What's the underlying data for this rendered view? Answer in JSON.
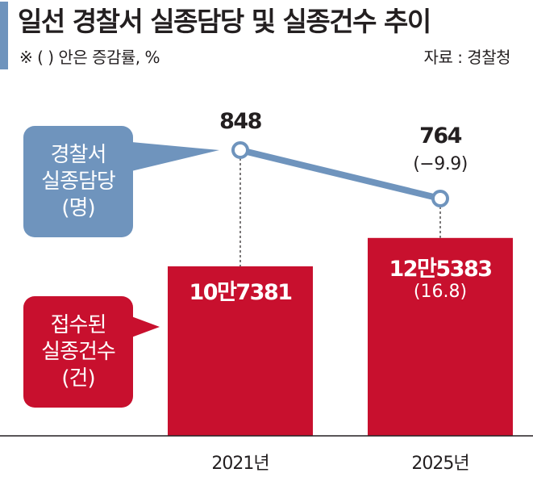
{
  "header": {
    "title": "일선 경찰서 실종담당 및 실종건수 추이",
    "note": "※ (  ) 안은 증감률, %",
    "source": "자료 : 경찰청"
  },
  "legend": {
    "officers_lines": [
      "경찰서",
      "실종담당",
      "(명)"
    ],
    "cases_lines": [
      "접수된",
      "실종건수",
      "(건)"
    ]
  },
  "colors": {
    "line": "#6f94bd",
    "bar": "#c8102e",
    "title_bar": "#6f94bd",
    "legend_line": "#6f94bd"
  },
  "chart_data": {
    "type": "bar",
    "categories": [
      "2021년",
      "2025년"
    ],
    "series": [
      {
        "name": "접수된 실종건수 (건)",
        "type": "bar",
        "values": [
          107381,
          125383
        ],
        "labels": [
          "10만7381",
          "12만5383"
        ],
        "change_labels": [
          "",
          "(16.8)"
        ]
      },
      {
        "name": "경찰서 실종담당 (명)",
        "type": "line",
        "values": [
          848,
          764
        ],
        "labels": [
          "848",
          "764"
        ],
        "change_labels": [
          "",
          "(−9.9)"
        ]
      }
    ]
  }
}
